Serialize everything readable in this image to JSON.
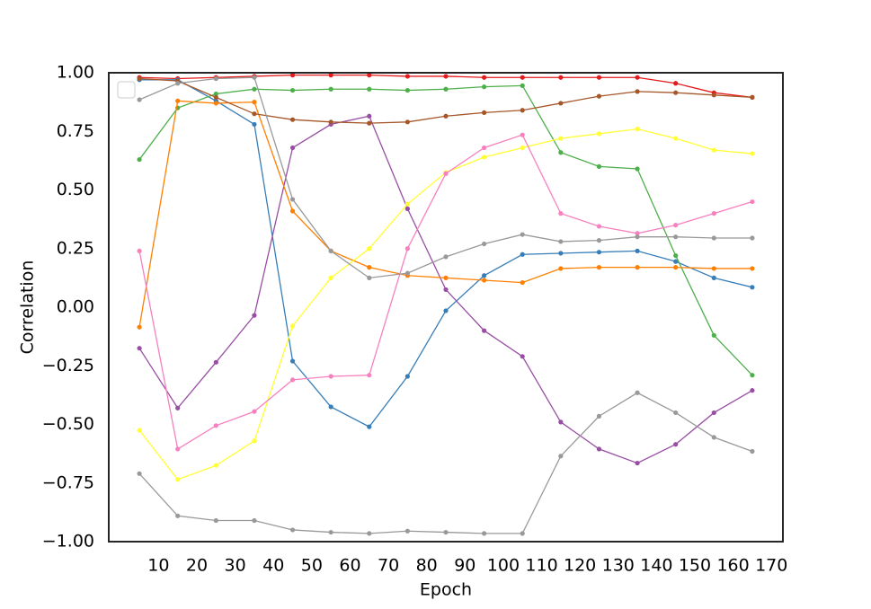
{
  "chart_data": {
    "type": "line",
    "x_label": "Epoch",
    "y_label": "Correlation",
    "x": [
      5,
      15,
      25,
      35,
      45,
      55,
      65,
      75,
      85,
      95,
      105,
      115,
      125,
      135,
      145,
      155,
      165
    ],
    "xlim": [
      -3,
      173
    ],
    "xticks": [
      10,
      20,
      30,
      40,
      50,
      60,
      70,
      80,
      90,
      100,
      110,
      120,
      130,
      140,
      150,
      160,
      170
    ],
    "ylim": [
      -1,
      1
    ],
    "yticks": [
      {
        "value": -1,
        "label": "−1.00"
      },
      {
        "value": -0.75,
        "label": "−0.75"
      },
      {
        "value": -0.5,
        "label": "−0.50"
      },
      {
        "value": -0.25,
        "label": "−0.25"
      },
      {
        "value": 0,
        "label": "0.00"
      },
      {
        "value": 0.25,
        "label": "0.25"
      },
      {
        "value": 0.5,
        "label": "0.50"
      },
      {
        "value": 0.75,
        "label": "0.75"
      },
      {
        "value": 1,
        "label": "1.00"
      }
    ],
    "grid": false,
    "series": [
      {
        "color": "#e41a1c",
        "values": [
          0.98,
          0.975,
          0.98,
          0.985,
          0.99,
          0.99,
          0.99,
          0.985,
          0.985,
          0.98,
          0.98,
          0.98,
          0.98,
          0.98,
          0.955,
          0.915,
          0.895
        ]
      },
      {
        "color": "#377eb8",
        "values": [
          0.97,
          0.97,
          0.88,
          0.78,
          -0.23,
          -0.425,
          -0.51,
          -0.295,
          -0.015,
          0.135,
          0.225,
          0.23,
          0.235,
          0.24,
          0.195,
          0.125,
          0.085
        ]
      },
      {
        "color": "#4daf4a",
        "values": [
          0.63,
          0.85,
          0.91,
          0.93,
          0.925,
          0.93,
          0.93,
          0.925,
          0.93,
          0.94,
          0.945,
          0.66,
          0.6,
          0.59,
          0.22,
          -0.12,
          -0.29
        ]
      },
      {
        "color": "#984ea3",
        "values": [
          -0.175,
          -0.43,
          -0.235,
          -0.035,
          0.68,
          0.78,
          0.815,
          0.42,
          0.075,
          -0.1,
          -0.21,
          -0.49,
          -0.605,
          -0.665,
          -0.585,
          -0.45,
          -0.355
        ]
      },
      {
        "color": "#ff7f00",
        "values": [
          -0.085,
          0.88,
          0.87,
          0.875,
          0.41,
          0.24,
          0.17,
          0.135,
          0.125,
          0.115,
          0.105,
          0.165,
          0.17,
          0.17,
          0.17,
          0.165,
          0.165
        ]
      },
      {
        "color": "#ffff33",
        "values": [
          -0.525,
          -0.735,
          -0.675,
          -0.57,
          -0.08,
          0.125,
          0.25,
          0.44,
          0.575,
          0.64,
          0.68,
          0.72,
          0.74,
          0.76,
          0.72,
          0.67,
          0.655
        ]
      },
      {
        "color": "#a65628",
        "values": [
          0.975,
          0.965,
          0.895,
          0.825,
          0.8,
          0.79,
          0.785,
          0.79,
          0.815,
          0.83,
          0.84,
          0.87,
          0.9,
          0.92,
          0.915,
          0.905,
          0.895
        ]
      },
      {
        "color": "#f781bf",
        "values": [
          0.24,
          -0.605,
          -0.505,
          -0.445,
          -0.31,
          -0.295,
          -0.29,
          0.25,
          0.57,
          0.68,
          0.735,
          0.4,
          0.345,
          0.315,
          0.35,
          0.4,
          0.45
        ]
      },
      {
        "color": "#999999",
        "values": [
          0.885,
          0.955,
          0.975,
          0.98,
          0.46,
          0.24,
          0.125,
          0.145,
          0.215,
          0.27,
          0.31,
          0.28,
          0.285,
          0.3,
          0.3,
          0.295,
          0.295
        ]
      },
      {
        "color": "#999999",
        "values": [
          -0.71,
          -0.89,
          -0.91,
          -0.91,
          -0.95,
          -0.96,
          -0.965,
          -0.955,
          -0.96,
          -0.965,
          -0.965,
          -0.635,
          -0.465,
          -0.365,
          -0.45,
          -0.555,
          -0.615
        ]
      }
    ]
  }
}
